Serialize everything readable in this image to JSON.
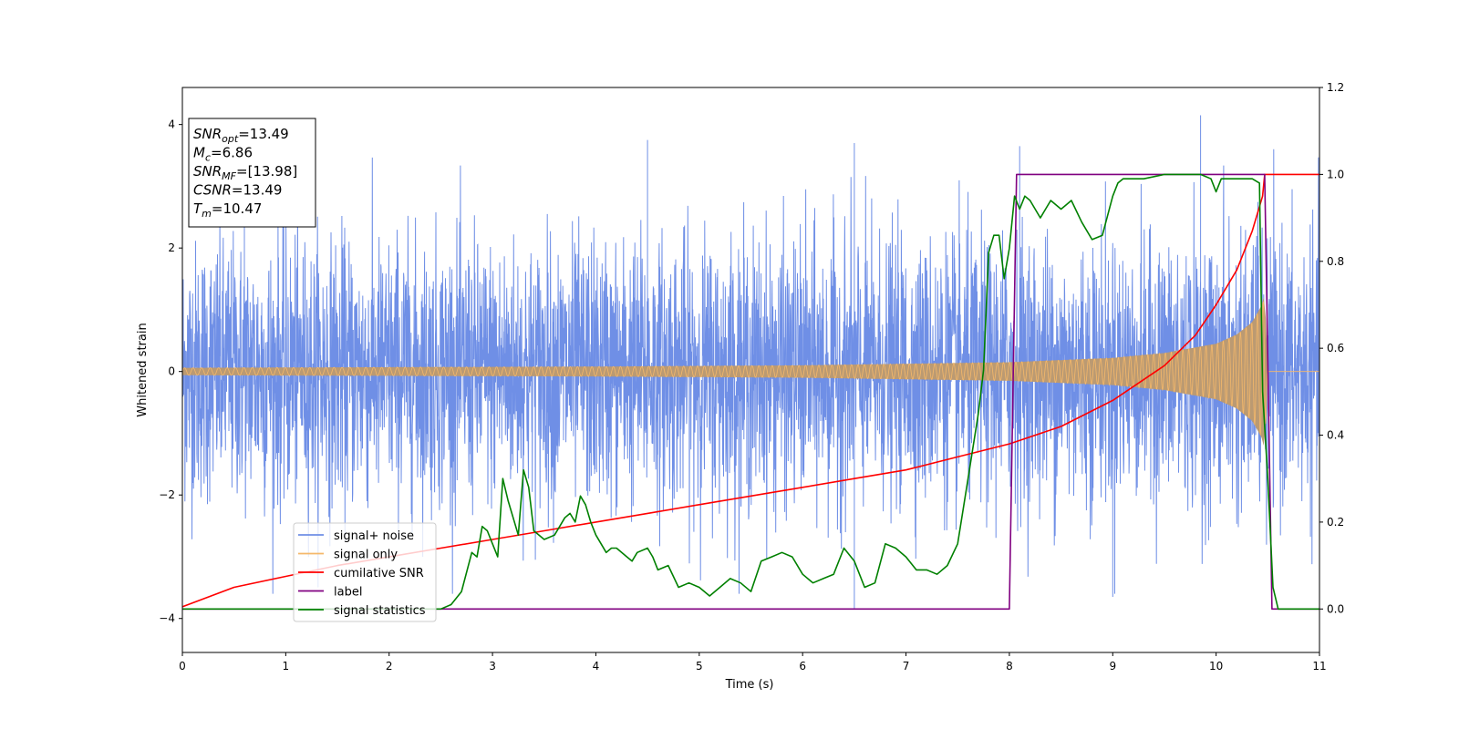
{
  "chart_data": {
    "type": "line",
    "title": "",
    "xlabel": "Time (s)",
    "ylabel": "Whitened strain",
    "y2label": "",
    "xlim": [
      0,
      11
    ],
    "ylim": [
      -4.55,
      4.6
    ],
    "y2lim": [
      -0.1,
      1.2
    ],
    "xticks": [
      0,
      1,
      2,
      3,
      4,
      5,
      6,
      7,
      8,
      9,
      10,
      11
    ],
    "yticks": [
      -4,
      -2,
      0,
      2,
      4
    ],
    "yticklabels": [
      "−4",
      "−2",
      "0",
      "2",
      "4"
    ],
    "y2ticks": [
      0.0,
      0.2,
      0.4,
      0.6,
      0.8,
      1.0,
      1.2
    ],
    "y2ticklabels": [
      "0.0",
      "0.2",
      "0.4",
      "0.6",
      "0.8",
      "1.0",
      "1.2"
    ],
    "grid": false,
    "legend_position": "lower-left",
    "series": [
      {
        "name": "signal+ noise",
        "axis": "left",
        "color": "#6f8fe6",
        "kind": "noisy-chirp",
        "noise_std": 1.0,
        "notable_peaks": [
          [
            0.6,
            3.85
          ],
          [
            4.5,
            3.75
          ],
          [
            6.5,
            3.7
          ],
          [
            8.1,
            3.65
          ],
          [
            9.85,
            4.15
          ],
          [
            6.5,
            -3.85
          ],
          [
            9.0,
            -3.65
          ]
        ]
      },
      {
        "name": "signal only",
        "axis": "left",
        "color": "#f5b86a",
        "fill_color": "#bb9a72",
        "kind": "chirp",
        "amplitude_envelope": {
          "t": [
            0,
            2,
            4,
            6,
            8,
            9,
            9.5,
            10,
            10.2,
            10.35,
            10.45,
            10.47,
            10.5,
            11
          ],
          "amp": [
            0.06,
            0.07,
            0.08,
            0.1,
            0.15,
            0.22,
            0.3,
            0.45,
            0.6,
            0.8,
            1.1,
            1.3,
            0.0,
            0.0
          ]
        }
      },
      {
        "name": "cumilative SNR",
        "axis": "right",
        "color": "#ff0000",
        "x": [
          0,
          0.5,
          1,
          1.5,
          2,
          2.5,
          3,
          3.5,
          4,
          4.5,
          5,
          5.5,
          6,
          6.5,
          7,
          7.5,
          8,
          8.5,
          9,
          9.5,
          9.8,
          10,
          10.2,
          10.35,
          10.45,
          10.47,
          11
        ],
        "y": [
          0.005,
          0.05,
          0.075,
          0.1,
          0.12,
          0.14,
          0.16,
          0.18,
          0.2,
          0.22,
          0.24,
          0.26,
          0.28,
          0.3,
          0.32,
          0.35,
          0.38,
          0.42,
          0.48,
          0.56,
          0.63,
          0.7,
          0.78,
          0.87,
          0.95,
          1.0,
          1.0
        ]
      },
      {
        "name": "label",
        "axis": "right",
        "color": "#800080",
        "x": [
          0,
          8.0,
          8.07,
          10.47,
          10.54,
          11
        ],
        "y": [
          0,
          0,
          1,
          1,
          0,
          0
        ]
      },
      {
        "name": "signal statistics",
        "axis": "right",
        "color": "#008000",
        "x": [
          0,
          0.5,
          1,
          1.5,
          2,
          2.5,
          2.6,
          2.7,
          2.8,
          2.85,
          2.9,
          2.95,
          3.0,
          3.05,
          3.1,
          3.15,
          3.25,
          3.3,
          3.35,
          3.4,
          3.5,
          3.6,
          3.7,
          3.75,
          3.8,
          3.85,
          3.9,
          3.95,
          4.0,
          4.1,
          4.15,
          4.2,
          4.3,
          4.35,
          4.4,
          4.5,
          4.55,
          4.6,
          4.7,
          4.8,
          4.9,
          5.0,
          5.1,
          5.2,
          5.3,
          5.4,
          5.5,
          5.6,
          5.7,
          5.8,
          5.9,
          6.0,
          6.1,
          6.2,
          6.3,
          6.4,
          6.5,
          6.6,
          6.7,
          6.8,
          6.9,
          7.0,
          7.1,
          7.2,
          7.3,
          7.4,
          7.5,
          7.6,
          7.7,
          7.75,
          7.8,
          7.85,
          7.9,
          7.95,
          8.0,
          8.05,
          8.1,
          8.15,
          8.2,
          8.3,
          8.35,
          8.4,
          8.5,
          8.55,
          8.6,
          8.7,
          8.8,
          8.9,
          9.0,
          9.05,
          9.1,
          9.2,
          9.3,
          9.5,
          9.7,
          9.85,
          9.95,
          10.0,
          10.05,
          10.1,
          10.3,
          10.35,
          10.42,
          10.45,
          10.5,
          10.55,
          10.6,
          10.7,
          11.0
        ],
        "y": [
          0.0,
          0.0,
          0.0,
          0.0,
          0.0,
          0.0,
          0.01,
          0.04,
          0.13,
          0.12,
          0.19,
          0.18,
          0.15,
          0.12,
          0.3,
          0.25,
          0.17,
          0.32,
          0.28,
          0.18,
          0.16,
          0.17,
          0.21,
          0.22,
          0.2,
          0.26,
          0.24,
          0.2,
          0.17,
          0.13,
          0.14,
          0.14,
          0.12,
          0.11,
          0.13,
          0.14,
          0.12,
          0.09,
          0.1,
          0.05,
          0.06,
          0.05,
          0.03,
          0.05,
          0.07,
          0.06,
          0.04,
          0.11,
          0.12,
          0.13,
          0.12,
          0.08,
          0.06,
          0.07,
          0.08,
          0.14,
          0.11,
          0.05,
          0.06,
          0.15,
          0.14,
          0.12,
          0.09,
          0.09,
          0.08,
          0.1,
          0.15,
          0.3,
          0.45,
          0.55,
          0.82,
          0.86,
          0.86,
          0.76,
          0.83,
          0.95,
          0.92,
          0.95,
          0.94,
          0.9,
          0.92,
          0.94,
          0.92,
          0.93,
          0.94,
          0.89,
          0.85,
          0.86,
          0.95,
          0.98,
          0.99,
          0.99,
          0.99,
          1.0,
          1.0,
          1.0,
          0.99,
          0.96,
          0.99,
          0.99,
          0.99,
          0.99,
          0.98,
          0.5,
          0.3,
          0.05,
          0.0,
          0.0,
          0.0
        ]
      }
    ],
    "annotation": {
      "lines": [
        {
          "var": "SNR",
          "sub": "opt",
          "value": "=13.49"
        },
        {
          "var": "M",
          "sub": "c",
          "value": "=6.86"
        },
        {
          "var": "SNR",
          "sub": "MF",
          "value": "=[13.98]"
        },
        {
          "var": "CSNR",
          "sub": "",
          "value": "=13.49"
        },
        {
          "var": "T",
          "sub": "m",
          "value": "=10.47"
        }
      ]
    }
  }
}
